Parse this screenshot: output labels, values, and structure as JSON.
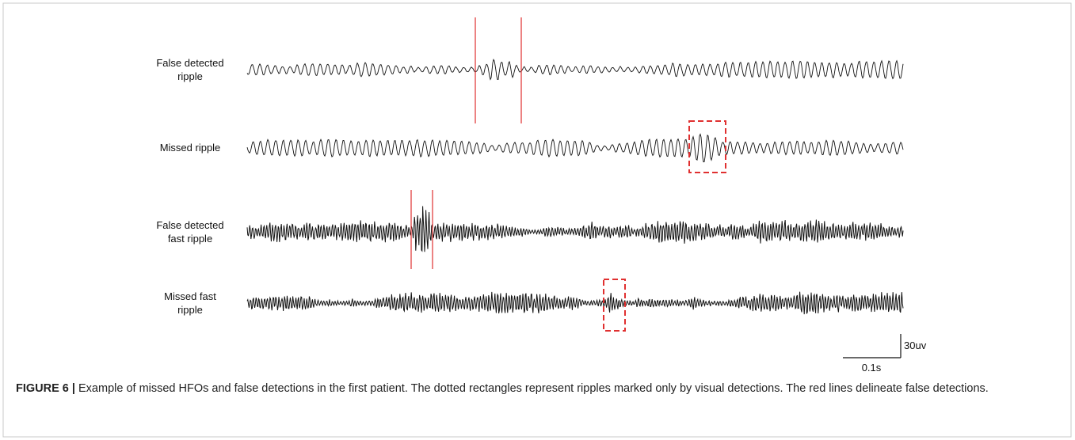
{
  "figure": {
    "traces": [
      {
        "label": [
          "False detected",
          "ripple"
        ]
      },
      {
        "label": [
          "Missed ripple"
        ]
      },
      {
        "label": [
          "False detected",
          "fast ripple"
        ]
      },
      {
        "label": [
          "Missed fast",
          "ripple"
        ]
      }
    ],
    "scale_bar": {
      "amplitude": "30uv",
      "time": "0.1s"
    },
    "caption": {
      "label": "FIGURE 6 |",
      "text": "Example of missed HFOs and false detections in the first patient. The dotted rectangles represent ripples marked only by visual detections. The red lines delineate false detections."
    }
  }
}
